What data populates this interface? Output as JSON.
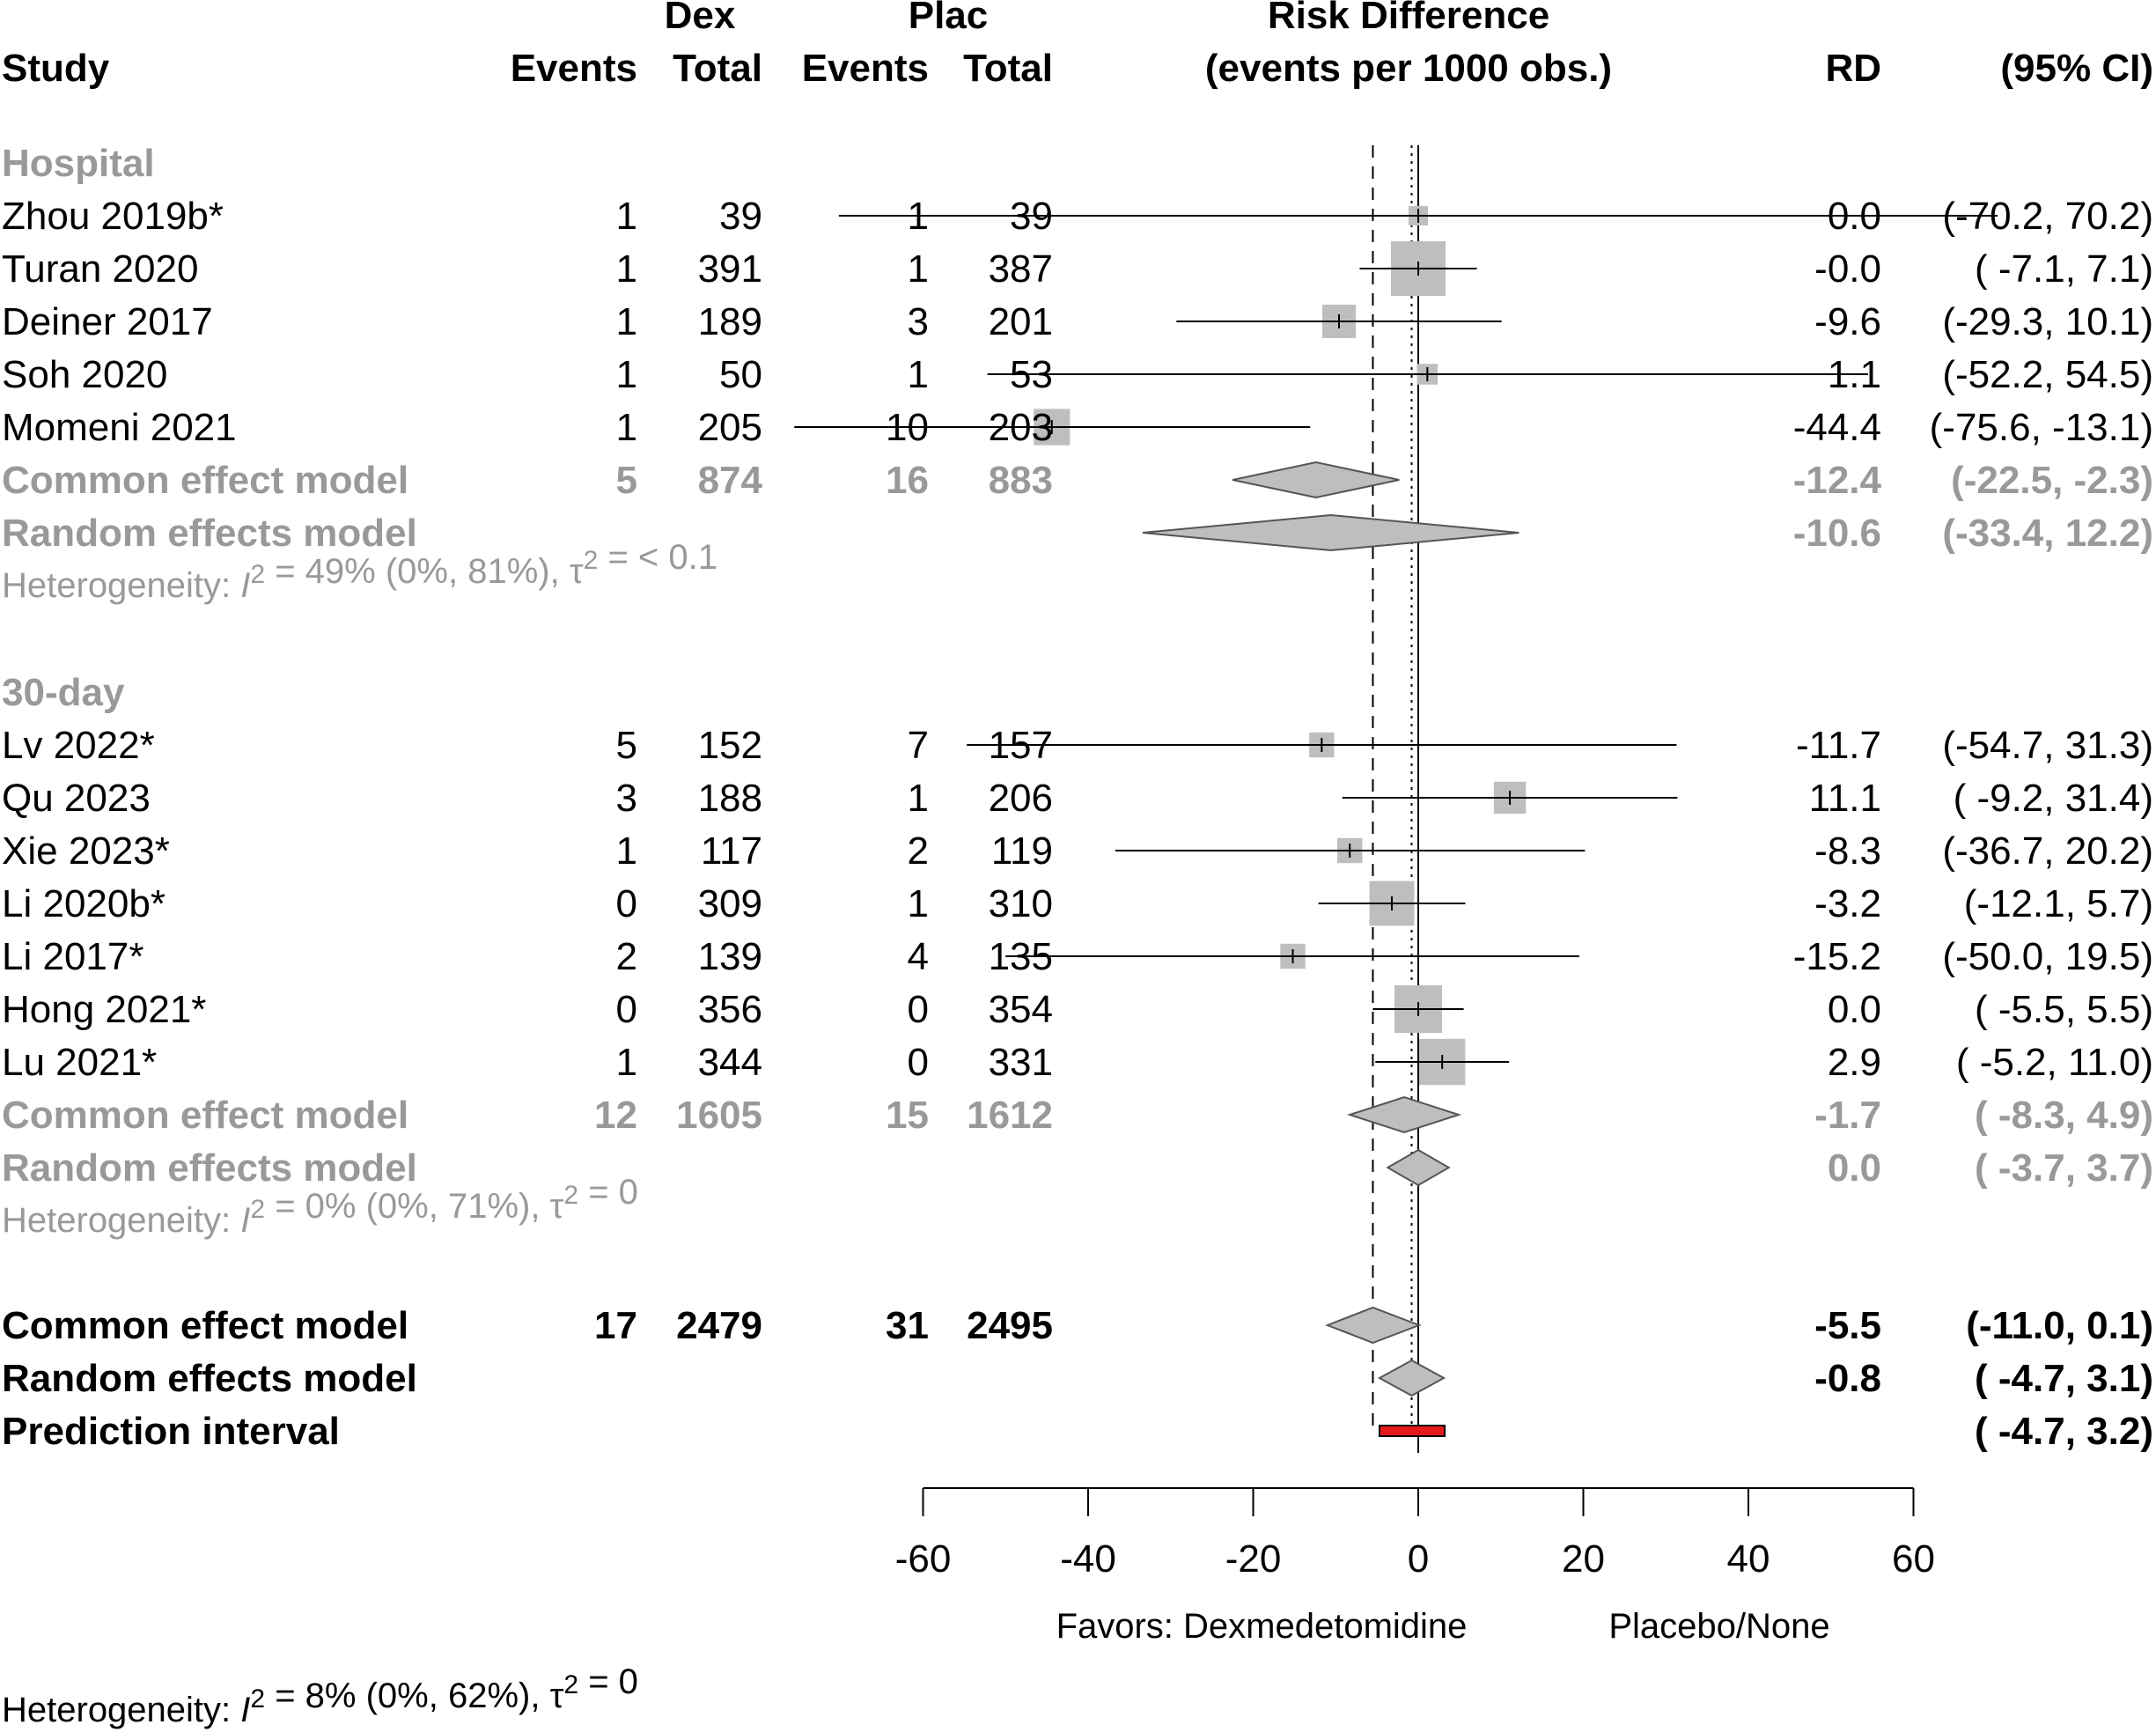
{
  "header": {
    "study": "Study",
    "dex": "Dex",
    "plac": "Plac",
    "events": "Events",
    "total": "Total",
    "rd_title": "Risk Difference",
    "rd_subtitle": "(events per 1000 obs.)",
    "rd": "RD",
    "ci": "(95% CI)"
  },
  "chart_data": {
    "type": "forest",
    "x_axis": {
      "min": -60,
      "max": 60,
      "ticks": [
        -60,
        -40,
        -20,
        0,
        20,
        40,
        60
      ],
      "tick_labels": [
        "-60",
        "-40",
        "-20",
        "0",
        "20",
        "40",
        "60"
      ],
      "favors_left": "Favors: Dexmedetomidine",
      "favors_right": "Placebo/None"
    },
    "reference_lines": {
      "null_value": 0,
      "common_effect_value": -5.5,
      "random_effect_value": -0.8
    },
    "subgroups": [
      {
        "name": "Hospital",
        "studies": [
          {
            "study": "Zhou 2019b*",
            "dex_events": "1",
            "dex_total": "39",
            "plac_events": "1",
            "plac_total": "39",
            "rd": 0.0,
            "lo": -70.2,
            "hi": 70.2,
            "rd_text": "0.0",
            "ci_text": "(-70.2,  70.2)",
            "weight": 0.5
          },
          {
            "study": "Turan 2020",
            "dex_events": "1",
            "dex_total": "391",
            "plac_events": "1",
            "plac_total": "387",
            "rd": -0.0,
            "lo": -7.1,
            "hi": 7.1,
            "rd_text": "-0.0",
            "ci_text": "( -7.1,   7.1)",
            "weight": 3.0
          },
          {
            "study": "Deiner 2017",
            "dex_events": "1",
            "dex_total": "189",
            "plac_events": "3",
            "plac_total": "201",
            "rd": -9.6,
            "lo": -29.3,
            "hi": 10.1,
            "rd_text": "-9.6",
            "ci_text": "(-29.3,  10.1)",
            "weight": 1.5
          },
          {
            "study": "Soh 2020",
            "dex_events": "1",
            "dex_total": "50",
            "plac_events": "1",
            "plac_total": "53",
            "rd": 1.1,
            "lo": -52.2,
            "hi": 54.5,
            "rd_text": "1.1",
            "ci_text": "(-52.2,  54.5)",
            "weight": 0.6
          },
          {
            "study": "Momeni 2021",
            "dex_events": "1",
            "dex_total": "205",
            "plac_events": "10",
            "plac_total": "203",
            "rd": -44.4,
            "lo": -75.6,
            "hi": -13.1,
            "rd_text": "-44.4",
            "ci_text": "(-75.6, -13.1)",
            "weight": 1.7
          }
        ],
        "common": {
          "label": "Common effect model",
          "dex_events": "5",
          "dex_total": "874",
          "plac_events": "16",
          "plac_total": "883",
          "rd": -12.4,
          "lo": -22.5,
          "hi": -2.3,
          "rd_text": "-12.4",
          "ci_text": "(-22.5,  -2.3)"
        },
        "random": {
          "label": "Random effects model",
          "rd": -10.6,
          "lo": -33.4,
          "hi": 12.2,
          "rd_text": "-10.6",
          "ci_text": "(-33.4,  12.2)"
        },
        "heterogeneity": {
          "prefix": "Heterogeneity: ",
          "i_letter": "I",
          "sup": "2",
          "middle": " = 49% (0%, 81%), ",
          "tau": "τ",
          "tau_sup": "2",
          "suffix": " = < 0.1"
        }
      },
      {
        "name": "30-day",
        "studies": [
          {
            "study": "Lv 2022*",
            "dex_events": "5",
            "dex_total": "152",
            "plac_events": "7",
            "plac_total": "157",
            "rd": -11.7,
            "lo": -54.7,
            "hi": 31.3,
            "rd_text": "-11.7",
            "ci_text": "(-54.7,  31.3)",
            "weight": 0.9
          },
          {
            "study": "Qu 2023",
            "dex_events": "3",
            "dex_total": "188",
            "plac_events": "1",
            "plac_total": "206",
            "rd": 11.1,
            "lo": -9.2,
            "hi": 31.4,
            "rd_text": "11.1",
            "ci_text": "( -9.2,  31.4)",
            "weight": 1.4
          },
          {
            "study": "Xie 2023*",
            "dex_events": "1",
            "dex_total": "117",
            "plac_events": "2",
            "plac_total": "119",
            "rd": -8.3,
            "lo": -36.7,
            "hi": 20.2,
            "rd_text": "-8.3",
            "ci_text": "(-36.7,  20.2)",
            "weight": 0.9
          },
          {
            "study": "Li 2020b*",
            "dex_events": "0",
            "dex_total": "309",
            "plac_events": "1",
            "plac_total": "310",
            "rd": -3.2,
            "lo": -12.1,
            "hi": 5.7,
            "rd_text": "-3.2",
            "ci_text": "(-12.1,   5.7)",
            "weight": 2.3
          },
          {
            "study": "Li 2017*",
            "dex_events": "2",
            "dex_total": "139",
            "plac_events": "4",
            "plac_total": "135",
            "rd": -15.2,
            "lo": -50.0,
            "hi": 19.5,
            "rd_text": "-15.2",
            "ci_text": "(-50.0,  19.5)",
            "weight": 0.9
          },
          {
            "study": "Hong 2021*",
            "dex_events": "0",
            "dex_total": "356",
            "plac_events": "0",
            "plac_total": "354",
            "rd": 0.0,
            "lo": -5.5,
            "hi": 5.5,
            "rd_text": "0.0",
            "ci_text": "( -5.5,   5.5)",
            "weight": 2.5
          },
          {
            "study": "Lu 2021*",
            "dex_events": "1",
            "dex_total": "344",
            "plac_events": "0",
            "plac_total": "331",
            "rd": 2.9,
            "lo": -5.2,
            "hi": 11.0,
            "rd_text": "2.9",
            "ci_text": "( -5.2,  11.0)",
            "weight": 2.4
          }
        ],
        "common": {
          "label": "Common effect model",
          "dex_events": "12",
          "dex_total": "1605",
          "plac_events": "15",
          "plac_total": "1612",
          "rd": -1.7,
          "lo": -8.3,
          "hi": 4.9,
          "rd_text": "-1.7",
          "ci_text": "( -8.3,   4.9)"
        },
        "random": {
          "label": "Random effects model",
          "rd": 0.0,
          "lo": -3.7,
          "hi": 3.7,
          "rd_text": "0.0",
          "ci_text": "( -3.7,   3.7)"
        },
        "heterogeneity": {
          "prefix": "Heterogeneity: ",
          "i_letter": "I",
          "sup": "2",
          "middle": " = 0% (0%, 71%), ",
          "tau": "τ",
          "tau_sup": "2",
          "suffix": " = 0"
        }
      }
    ],
    "overall": {
      "common": {
        "label": "Common effect model",
        "dex_events": "17",
        "dex_total": "2479",
        "plac_events": "31",
        "plac_total": "2495",
        "rd": -5.5,
        "lo": -11.0,
        "hi": 0.1,
        "rd_text": "-5.5",
        "ci_text": "(-11.0,   0.1)"
      },
      "random": {
        "label": "Random effects model",
        "rd": -0.8,
        "lo": -4.7,
        "hi": 3.1,
        "rd_text": "-0.8",
        "ci_text": "( -4.7,   3.1)"
      },
      "prediction": {
        "label": "Prediction interval",
        "lo": -4.7,
        "hi": 3.2,
        "ci_text": "( -4.7,   3.2)"
      },
      "heterogeneity": {
        "prefix": "Heterogeneity: ",
        "i_letter": "I",
        "sup": "2",
        "middle": " = 8% (0%, 62%), ",
        "tau": "τ",
        "tau_sup": "2",
        "suffix": " = 0"
      }
    },
    "colors": {
      "subgroup_text": "#999999",
      "text": "#000000",
      "square": "#bebebe",
      "diamond": "#bebebe",
      "prediction": "#e31a1c"
    }
  }
}
